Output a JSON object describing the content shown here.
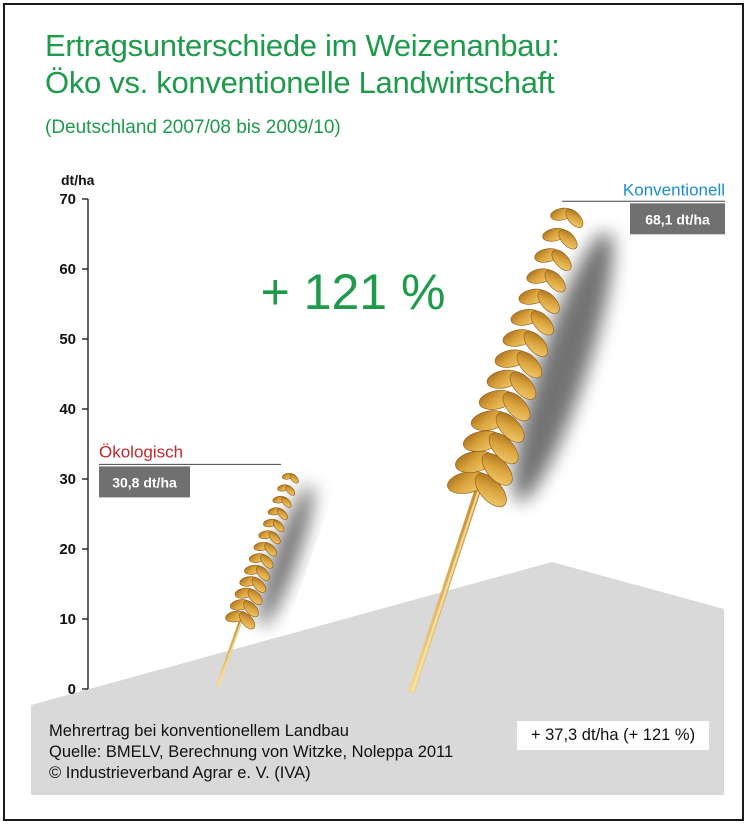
{
  "title_line1": "Ertragsunterschiede im Weizenanbau:",
  "title_line2": "Öko vs. konventionelle Landwirtschaft",
  "subtitle": "(Deutschland 2007/08 bis 2009/10)",
  "highlight": "+ 121 %",
  "footer": {
    "line1": "Mehrertrag bei konventionellem Landbau",
    "line2": "Quelle: BMELV, Berechnung von Witzke, Noleppa 2011",
    "line3": "© Industrieverband Agrar e. V. (IVA)",
    "difference": "+ 37,3 dt/ha (+ 121 %)"
  },
  "colors": {
    "title": "#1e9a4b",
    "oeko_label": "#c1272d",
    "konv_label": "#1c8ccf",
    "value_box": "#707070",
    "ground": "#d9d9d9",
    "wheat": "#d9a13a"
  },
  "chart_data": {
    "type": "bar",
    "title": "Ertragsunterschiede im Weizenanbau: Öko vs. konventionelle Landwirtschaft",
    "subtitle": "(Deutschland 2007/08 bis 2009/10)",
    "ylabel": "dt/ha",
    "ylim": [
      0,
      70
    ],
    "yticks": [
      0,
      10,
      20,
      30,
      40,
      50,
      60,
      70
    ],
    "categories": [
      "Ökologisch",
      "Konventionell"
    ],
    "values": [
      30.8,
      68.1
    ],
    "value_labels": [
      "30,8 dt/ha",
      "68,1 dt/ha"
    ],
    "annotation": "+ 121 %"
  }
}
